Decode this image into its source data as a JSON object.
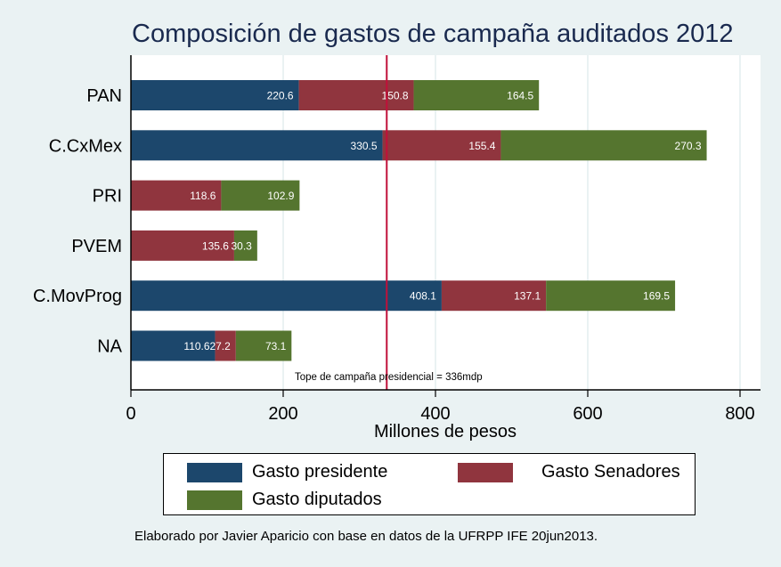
{
  "chart_data": {
    "type": "bar",
    "orientation": "horizontal",
    "stacked": true,
    "title": "Composición de gastos de campaña auditados 2012",
    "xlabel": "Millones de pesos",
    "ylabel": "",
    "xlim": [
      0,
      820
    ],
    "xticks": [
      0,
      200,
      400,
      600,
      800
    ],
    "grid": true,
    "categories": [
      "PAN",
      "C.CxMex",
      "PRI",
      "PVEM",
      "C.MovProg",
      "NA"
    ],
    "series": [
      {
        "name": "Gasto presidente",
        "color": "#1c476c",
        "values": [
          220.6,
          330.5,
          null,
          null,
          408.1,
          110.6
        ]
      },
      {
        "name": "Gasto Senadores",
        "color": "#90353e",
        "values": [
          150.8,
          155.4,
          118.6,
          135.6,
          137.1,
          27.2
        ]
      },
      {
        "name": "Gasto diputados",
        "color": "#55752f",
        "values": [
          164.5,
          270.3,
          102.9,
          30.3,
          169.5,
          73.1
        ]
      }
    ],
    "reference_line": {
      "value": 336,
      "color": "#c0103a",
      "label": "Tope de campaña presidencial = 336mdp"
    },
    "legend_position": "bottom",
    "caption": "Elaborado por Javier Aparicio con base en datos de la UFRPP IFE 20jun2013."
  }
}
